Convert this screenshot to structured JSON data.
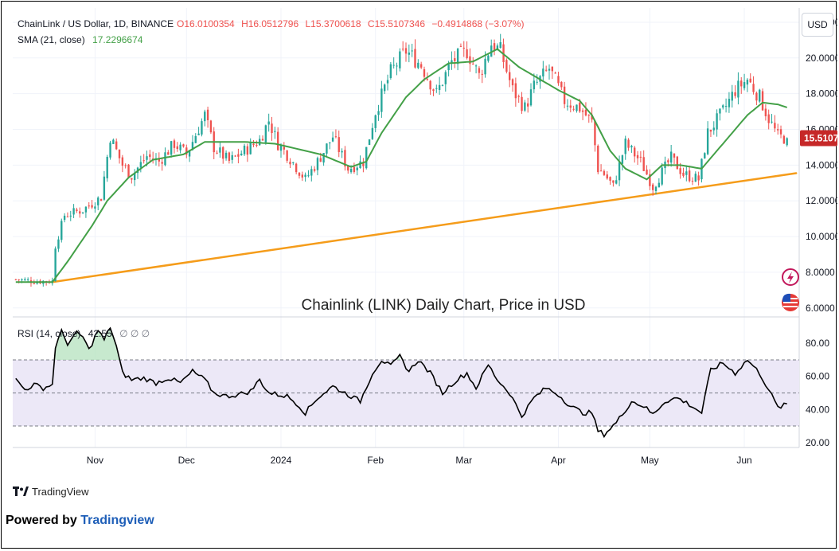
{
  "legend": {
    "symbol": "ChainLink / US Dollar, 1D, BINANCE",
    "open": "O16.0100354",
    "high": "H16.0512796",
    "low": "L15.3700618",
    "close": "C15.5107346",
    "change": "−0.4914868 (−3.07%)",
    "sma_label": "SMA (21, close)",
    "sma_value": "17.2296674",
    "rsi_label": "RSI (14, close)",
    "rsi_value": "42.55",
    "rsi_placeholders": "∅ ∅ ∅"
  },
  "currency_button": "USD",
  "price_badge": "15.5107",
  "annotation": "Chainlink (LINK) Daily Chart, Price in USD",
  "footer": {
    "tradingview": "TradingView",
    "powered_prefix": "Powered by ",
    "powered_brand": "Tradingview"
  },
  "colors": {
    "up": "#26a69a",
    "down": "#ef5350",
    "sma": "#43a047",
    "trendline": "#f59c1a",
    "rsi": "#000000",
    "rsi_band": "#ece8f7",
    "price_badge": "#c62828"
  },
  "chart_data": [
    {
      "type": "candlestick",
      "title": "ChainLink / US Dollar, 1D, BINANCE",
      "y_ticks": [
        "22.0000",
        "20.0000",
        "18.0000",
        "16.0000",
        "14.0000",
        "12.0000",
        "10.0000",
        "8.0000",
        "6.0000"
      ],
      "ylim": [
        5.5,
        22.8
      ],
      "x_ticks": [
        "Nov",
        "Dec",
        "2024",
        "Feb",
        "Mar",
        "Apr",
        "May",
        "Jun"
      ],
      "x_tick_days": [
        26,
        56,
        87,
        118,
        147,
        178,
        208,
        239
      ],
      "xlim": [
        -1,
        257
      ],
      "close_anchors": [
        [
          0,
          7.6
        ],
        [
          6,
          7.5
        ],
        [
          12,
          7.5
        ],
        [
          13,
          9.5
        ],
        [
          16,
          11.2
        ],
        [
          22,
          11.5
        ],
        [
          28,
          12.2
        ],
        [
          31,
          15.6
        ],
        [
          35,
          14.0
        ],
        [
          38,
          13.4
        ],
        [
          43,
          14.5
        ],
        [
          47,
          14.2
        ],
        [
          52,
          15.2
        ],
        [
          56,
          14.6
        ],
        [
          62,
          16.8
        ],
        [
          65,
          15.0
        ],
        [
          70,
          14.2
        ],
        [
          75,
          14.8
        ],
        [
          80,
          15.4
        ],
        [
          83,
          16.5
        ],
        [
          86,
          15.2
        ],
        [
          89,
          14.6
        ],
        [
          92,
          13.9
        ],
        [
          95,
          13.2
        ],
        [
          99,
          14.2
        ],
        [
          104,
          15.6
        ],
        [
          109,
          13.8
        ],
        [
          114,
          14.2
        ],
        [
          118,
          17.0
        ],
        [
          123,
          19.2
        ],
        [
          128,
          20.4
        ],
        [
          133,
          19.6
        ],
        [
          138,
          18.0
        ],
        [
          143,
          19.8
        ],
        [
          148,
          20.4
        ],
        [
          152,
          19.0
        ],
        [
          156,
          20.8
        ],
        [
          159,
          20.4
        ],
        [
          163,
          18.2
        ],
        [
          167,
          17.2
        ],
        [
          170,
          18.4
        ],
        [
          175,
          19.4
        ],
        [
          180,
          17.6
        ],
        [
          185,
          17.2
        ],
        [
          189,
          16.4
        ],
        [
          191,
          13.8
        ],
        [
          193,
          13.5
        ],
        [
          196,
          12.8
        ],
        [
          200,
          15.2
        ],
        [
          205,
          14.2
        ],
        [
          209,
          12.8
        ],
        [
          212,
          13.6
        ],
        [
          215,
          14.4
        ],
        [
          219,
          13.5
        ],
        [
          224,
          13.2
        ],
        [
          227,
          15.8
        ],
        [
          232,
          17.0
        ],
        [
          236,
          18.2
        ],
        [
          240,
          18.8
        ],
        [
          244,
          17.8
        ],
        [
          247,
          16.6
        ],
        [
          250,
          15.6
        ],
        [
          253,
          15.5
        ]
      ],
      "sma_anchors": [
        [
          0,
          7.45
        ],
        [
          12,
          7.45
        ],
        [
          17,
          8.6
        ],
        [
          25,
          10.6
        ],
        [
          30,
          12.0
        ],
        [
          37,
          13.3
        ],
        [
          45,
          14.3
        ],
        [
          55,
          14.6
        ],
        [
          62,
          15.3
        ],
        [
          75,
          15.3
        ],
        [
          85,
          15.2
        ],
        [
          100,
          14.6
        ],
        [
          110,
          13.9
        ],
        [
          115,
          14.2
        ],
        [
          120,
          15.8
        ],
        [
          128,
          17.8
        ],
        [
          134,
          18.8
        ],
        [
          142,
          19.7
        ],
        [
          150,
          19.8
        ],
        [
          158,
          20.5
        ],
        [
          165,
          19.5
        ],
        [
          172,
          18.8
        ],
        [
          178,
          18.2
        ],
        [
          185,
          17.6
        ],
        [
          189,
          16.8
        ],
        [
          195,
          14.8
        ],
        [
          200,
          13.8
        ],
        [
          207,
          13.2
        ],
        [
          212,
          14.0
        ],
        [
          218,
          14.0
        ],
        [
          225,
          13.8
        ],
        [
          232,
          15.2
        ],
        [
          240,
          16.8
        ],
        [
          245,
          17.5
        ],
        [
          250,
          17.4
        ],
        [
          253,
          17.23
        ]
      ],
      "trendline": {
        "from": [
          12,
          7.45
        ],
        "to": [
          256,
          13.55
        ]
      },
      "last_close": 15.5107
    },
    {
      "type": "line",
      "title": "RSI (14, close)",
      "y_ticks": [
        "80.00",
        "60.00",
        "40.00",
        "20.00"
      ],
      "ylim": [
        17,
        96
      ],
      "bands": [
        30,
        50,
        70
      ],
      "overbought": 70,
      "rsi_anchors": [
        [
          0,
          58
        ],
        [
          3,
          52
        ],
        [
          6,
          55
        ],
        [
          9,
          53
        ],
        [
          12,
          55
        ],
        [
          13,
          78
        ],
        [
          15,
          87
        ],
        [
          17,
          80
        ],
        [
          20,
          86
        ],
        [
          22,
          84
        ],
        [
          24,
          76
        ],
        [
          27,
          88
        ],
        [
          29,
          82
        ],
        [
          31,
          90
        ],
        [
          33,
          78
        ],
        [
          35,
          62
        ],
        [
          38,
          58
        ],
        [
          42,
          59
        ],
        [
          46,
          56
        ],
        [
          50,
          59
        ],
        [
          54,
          56
        ],
        [
          58,
          63
        ],
        [
          62,
          58
        ],
        [
          65,
          50
        ],
        [
          69,
          48
        ],
        [
          73,
          49
        ],
        [
          77,
          51
        ],
        [
          80,
          58
        ],
        [
          83,
          50
        ],
        [
          86,
          49
        ],
        [
          89,
          48
        ],
        [
          92,
          44
        ],
        [
          95,
          38
        ],
        [
          99,
          47
        ],
        [
          104,
          54
        ],
        [
          109,
          49
        ],
        [
          113,
          45
        ],
        [
          117,
          62
        ],
        [
          120,
          70
        ],
        [
          123,
          66
        ],
        [
          126,
          72
        ],
        [
          129,
          63
        ],
        [
          132,
          70
        ],
        [
          136,
          62
        ],
        [
          140,
          50
        ],
        [
          144,
          57
        ],
        [
          148,
          62
        ],
        [
          151,
          53
        ],
        [
          155,
          67
        ],
        [
          158,
          58
        ],
        [
          162,
          50
        ],
        [
          166,
          36
        ],
        [
          170,
          47
        ],
        [
          174,
          53
        ],
        [
          178,
          49
        ],
        [
          182,
          42
        ],
        [
          186,
          38
        ],
        [
          189,
          38
        ],
        [
          191,
          27
        ],
        [
          193,
          25
        ],
        [
          197,
          32
        ],
        [
          202,
          45
        ],
        [
          206,
          42
        ],
        [
          209,
          37
        ],
        [
          213,
          45
        ],
        [
          217,
          47
        ],
        [
          221,
          43
        ],
        [
          225,
          38
        ],
        [
          228,
          64
        ],
        [
          232,
          68
        ],
        [
          236,
          62
        ],
        [
          240,
          70
        ],
        [
          244,
          62
        ],
        [
          247,
          52
        ],
        [
          250,
          41
        ],
        [
          253,
          43
        ]
      ]
    }
  ]
}
